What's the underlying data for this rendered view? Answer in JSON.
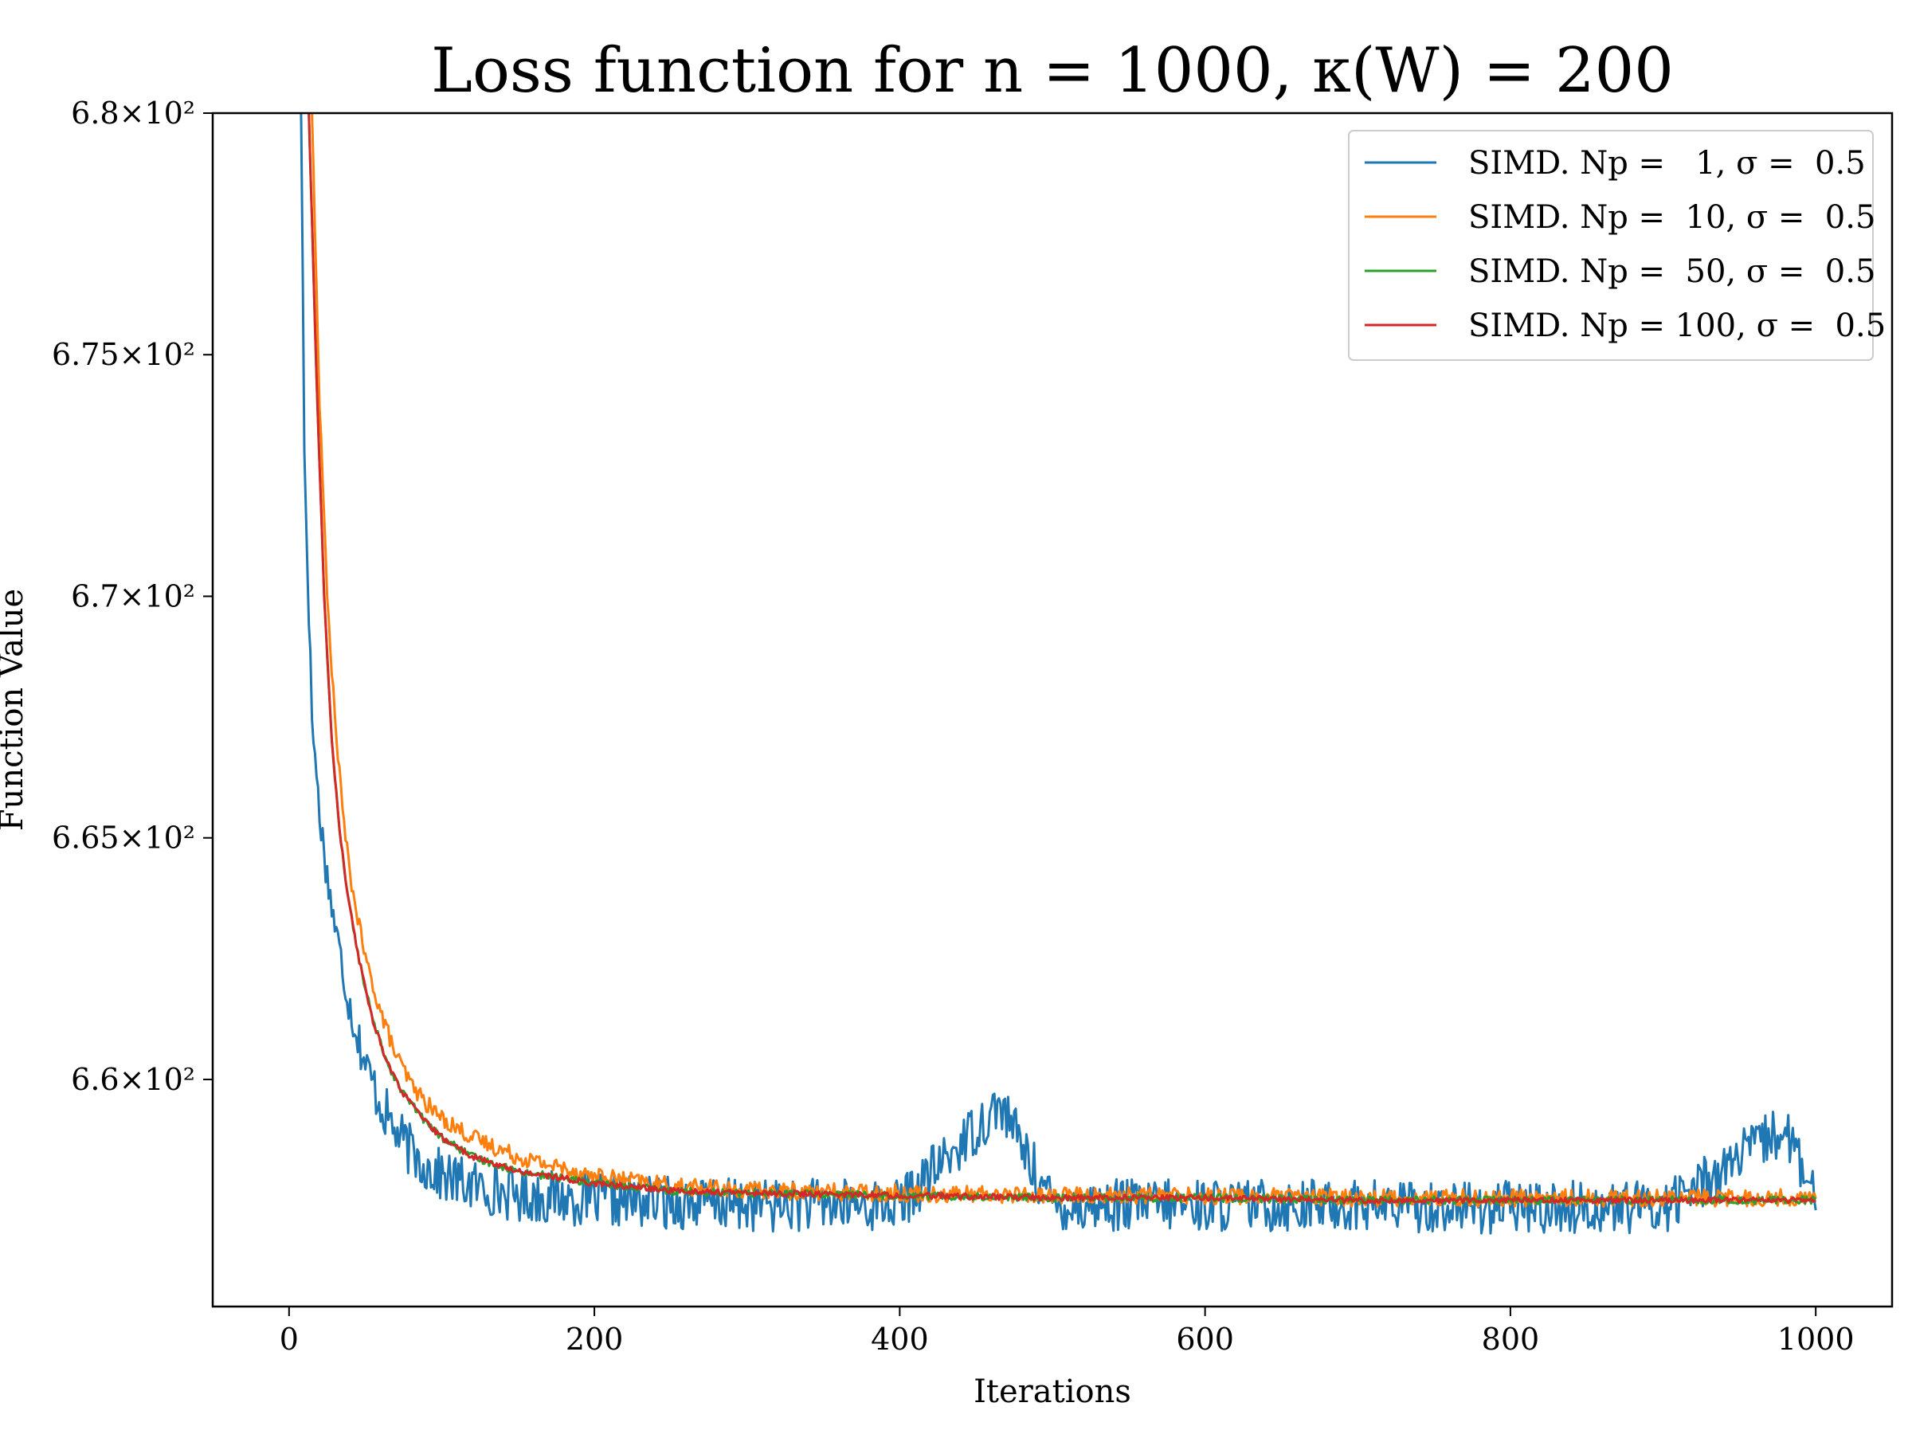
{
  "chart_data": {
    "type": "line",
    "title": "Loss function for n = 1000, κ(W) = 200",
    "xlabel": "Iterations",
    "ylabel": "Function Value",
    "xlim": [
      -50,
      1050
    ],
    "ylim": [
      655.3,
      680
    ],
    "x_ticks": [
      0,
      200,
      400,
      600,
      800,
      1000
    ],
    "x_tick_labels": [
      "0",
      "200",
      "400",
      "600",
      "800",
      "1000"
    ],
    "y_ticks": [
      660,
      665,
      670,
      675,
      680
    ],
    "y_tick_labels": [
      "6.6×10²",
      "6.65×10²",
      "6.7×10²",
      "6.75×10²",
      "6.8×10²"
    ],
    "grid": false,
    "legend_position": "top-right",
    "series": [
      {
        "name": "SIMD. Np =   1, σ =  0.5",
        "color": "#1f77b4",
        "x": [
          0,
          8,
          10,
          15,
          20,
          25,
          30,
          35,
          40,
          50,
          60,
          70,
          80,
          90,
          100,
          120,
          150,
          200,
          250,
          300,
          400,
          466,
          500,
          600,
          700,
          800,
          900,
          980,
          1000
        ],
        "y": [
          695,
          680,
          673,
          667.5,
          665.5,
          664.2,
          663.2,
          662.3,
          661.5,
          660.3,
          659.5,
          658.9,
          658.5,
          658.2,
          658.0,
          657.8,
          657.6,
          657.5,
          657.45,
          657.4,
          657.4,
          659.5,
          657.4,
          657.4,
          657.4,
          657.35,
          657.35,
          659.0,
          657.4
        ]
      },
      {
        "name": "SIMD. Np =  10, σ =  0.5",
        "color": "#ff7f0e",
        "x": [
          0,
          15,
          20,
          25,
          30,
          35,
          40,
          50,
          60,
          70,
          80,
          90,
          100,
          120,
          150,
          200,
          250,
          300,
          400,
          500,
          600,
          700,
          800,
          900,
          1000
        ],
        "y": [
          695,
          680,
          674,
          670,
          667.5,
          665.6,
          664.2,
          662.5,
          661.4,
          660.5,
          659.9,
          659.5,
          659.2,
          658.8,
          658.4,
          658.0,
          657.8,
          657.7,
          657.65,
          657.6,
          657.6,
          657.55,
          657.55,
          657.55,
          657.55
        ]
      },
      {
        "name": "SIMD. Np =  50, σ =  0.5",
        "color": "#2ca02c",
        "x": [
          0,
          13,
          18,
          23,
          28,
          33,
          38,
          45,
          55,
          65,
          75,
          90,
          100,
          120,
          150,
          200,
          250,
          300,
          400,
          500,
          600,
          700,
          800,
          900,
          1000
        ],
        "y": [
          695,
          680,
          674.5,
          670,
          667,
          665.2,
          663.9,
          662.6,
          661.2,
          660.3,
          659.7,
          659.1,
          658.8,
          658.4,
          658.1,
          657.85,
          657.7,
          657.65,
          657.6,
          657.55,
          657.55,
          657.5,
          657.5,
          657.5,
          657.5
        ]
      },
      {
        "name": "SIMD. Np = 100, σ =  0.5",
        "color": "#d62728",
        "x": [
          0,
          13,
          18,
          23,
          28,
          33,
          38,
          45,
          55,
          65,
          75,
          90,
          100,
          120,
          150,
          200,
          250,
          300,
          400,
          500,
          600,
          700,
          800,
          900,
          1000
        ],
        "y": [
          695,
          680,
          674.5,
          670,
          667,
          665.2,
          663.9,
          662.6,
          661.2,
          660.3,
          659.7,
          659.1,
          658.8,
          658.4,
          658.1,
          657.85,
          657.7,
          657.65,
          657.6,
          657.55,
          657.55,
          657.5,
          657.5,
          657.5,
          657.5
        ]
      }
    ]
  }
}
